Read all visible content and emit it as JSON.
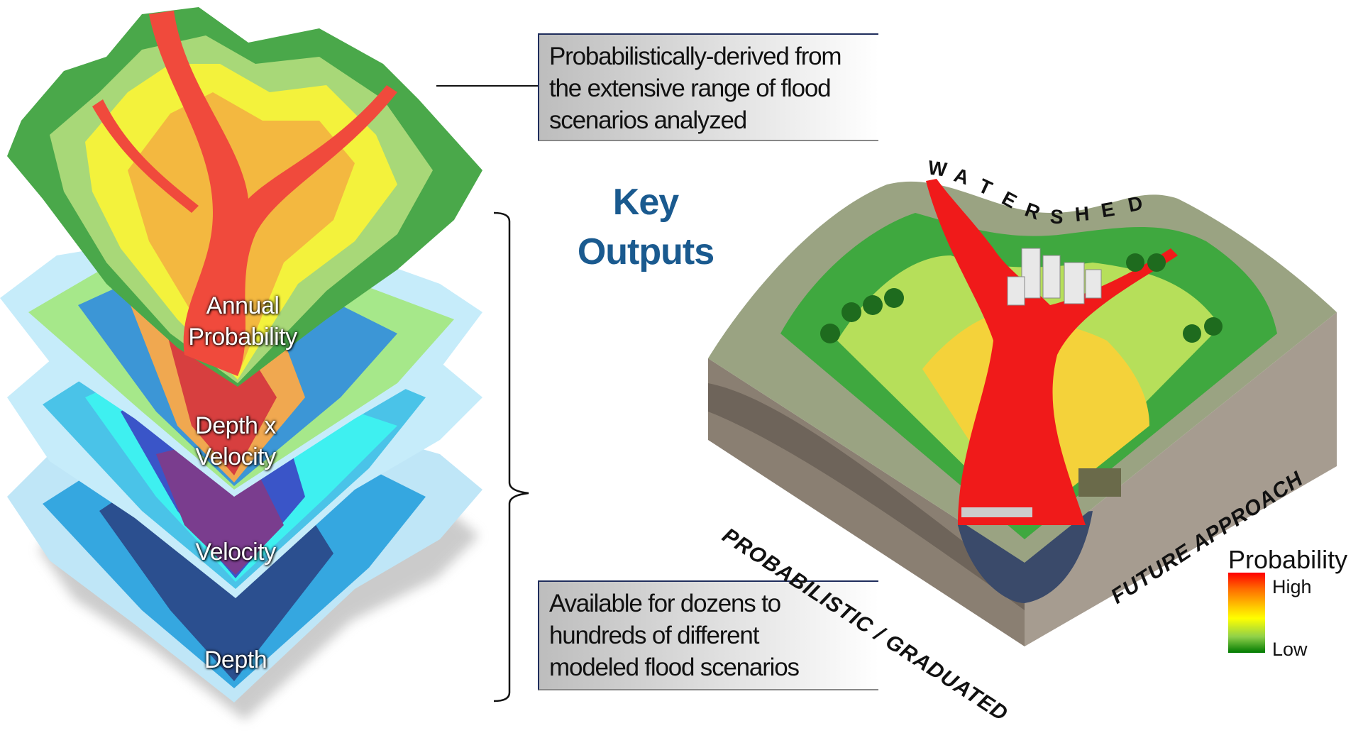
{
  "callouts": {
    "top": [
      "Probabilistically-derived from",
      "the extensive range of flood",
      "scenarios analyzed"
    ],
    "bottom": [
      "Available for dozens to",
      "hundreds of different",
      "modeled flood scenarios"
    ]
  },
  "key_outputs": [
    "Key",
    "Outputs"
  ],
  "layers": [
    {
      "label": [
        "Annual",
        "Probability"
      ]
    },
    {
      "label": [
        "Depth x",
        "Velocity"
      ]
    },
    {
      "label": [
        "Velocity"
      ]
    },
    {
      "label": [
        "Depth"
      ]
    }
  ],
  "watershed": {
    "title": "WATERSHED",
    "left_face": "PROBABILISTIC / GRADUATED",
    "right_face": "FUTURE APPROACH"
  },
  "legend": {
    "title": "Probability",
    "high": "High",
    "low": "Low",
    "colors": [
      "#ff0000",
      "#ff6a00",
      "#ffff00",
      "#007a00"
    ]
  },
  "colors": {
    "accent": "#1a5a8f",
    "box_border": "#1f2d5c"
  }
}
